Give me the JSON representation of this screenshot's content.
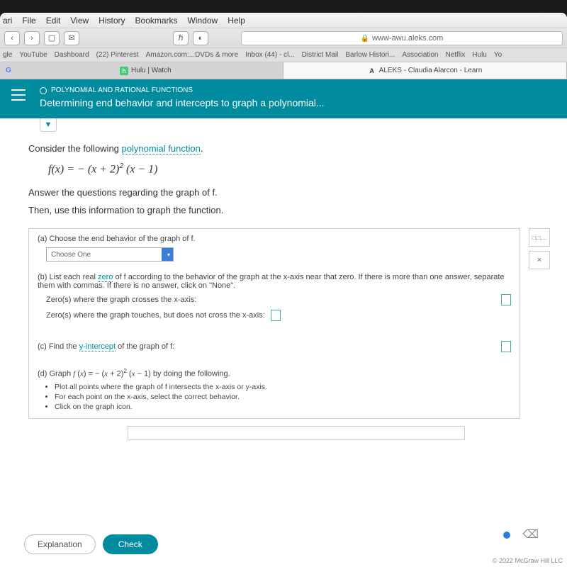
{
  "menubar": {
    "app": "ari",
    "items": [
      "File",
      "Edit",
      "View",
      "History",
      "Bookmarks",
      "Window",
      "Help"
    ]
  },
  "toolbar": {
    "back": "‹",
    "forward": "›",
    "sidebar": "▢",
    "mail": "✉",
    "mid_icons": [
      "ℏ",
      "◐"
    ],
    "url": "www-awu.aleks.com"
  },
  "bookmarks": [
    "gle",
    "YouTube",
    "Dashboard",
    "(22) Pinterest",
    "Amazon.com:...DVDs & more",
    "Inbox (44) - cl...",
    "District Mail",
    "Barlow Histori...",
    "Association",
    "Netflix",
    "Hulu",
    "Yo"
  ],
  "tabs": [
    {
      "icon_bg": "#3dce6f",
      "icon_text": "h",
      "label": "Hulu | Watch",
      "active": false,
      "favicon_left": "G"
    },
    {
      "icon_bg": "#333",
      "icon_text": "A",
      "label": "ALEKS - Claudia Alarcon - Learn",
      "active": true
    }
  ],
  "header": {
    "breadcrumb": "POLYNOMIAL AND RATIONAL FUNCTIONS",
    "title": "Determining end behavior and intercepts to graph a polynomial..."
  },
  "problem": {
    "intro": "Consider the following ",
    "intro_link": "polynomial function",
    "intro_end": ".",
    "formula_html": "f(x) = − (x + 2)² (x − 1)",
    "instr1": "Answer the questions regarding the graph of f.",
    "instr2": "Then, use this information to graph the function."
  },
  "parts": {
    "a": {
      "label": "(a) Choose the end behavior of the graph of f.",
      "dropdown": "Choose One"
    },
    "b": {
      "label": "(b) List each real ",
      "link": "zero",
      "label2": " of f according to the behavior of the graph at the x-axis near that zero. If there is more than one answer, separate them with commas. If there is no answer, click on \"None\".",
      "row1": "Zero(s) where the graph crosses the x-axis:",
      "row2": "Zero(s) where the graph touches, but does not cross the x-axis:"
    },
    "c": {
      "label": "(c) Find the ",
      "link": "y-intercept",
      "label2": " of the graph of f:"
    },
    "d": {
      "label": "(d) Graph f(x) = − (x + 2)² (x − 1) by doing the following.",
      "bullets": [
        "Plot all points where the graph of f intersects the x-axis or y-axis.",
        "For each point on the x-axis, select the correct behavior.",
        "Click on the graph icon."
      ]
    }
  },
  "tools": {
    "t1": "□,□,...",
    "t2": "×"
  },
  "buttons": {
    "explanation": "Explanation",
    "check": "Check"
  },
  "footer": "© 2022 McGraw Hill LLC",
  "colors": {
    "teal": "#008b9e",
    "link": "#008b9e"
  }
}
